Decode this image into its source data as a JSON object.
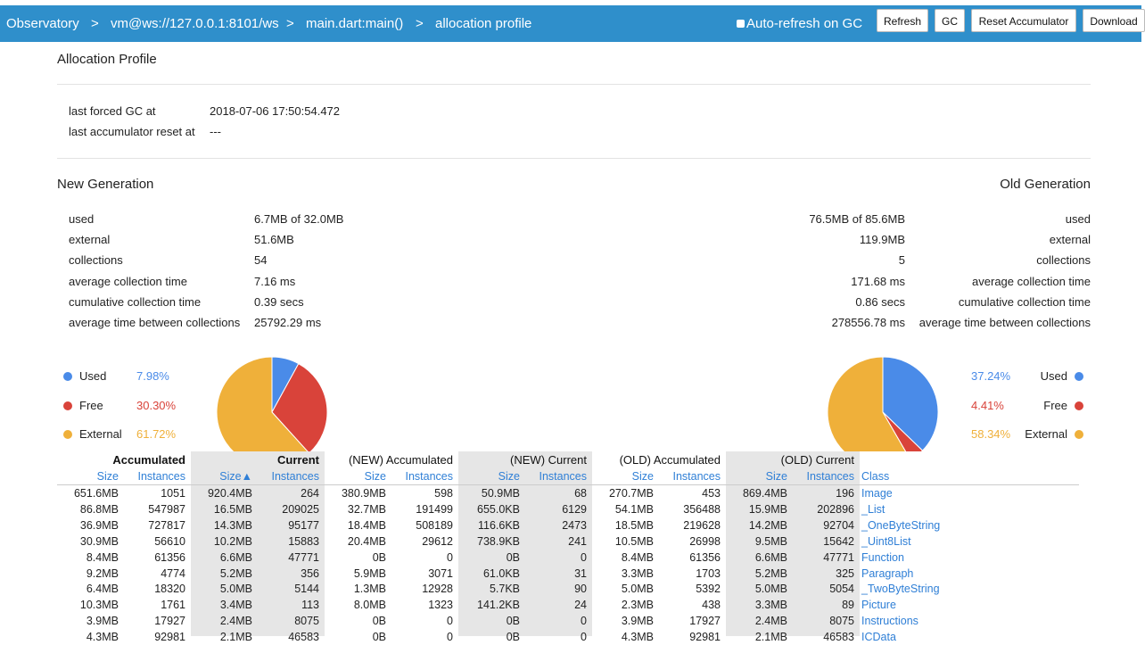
{
  "nav": {
    "crumbs": [
      "Observatory",
      "vm@ws://127.0.0.1:8101/ws",
      "main.dart:main()",
      "allocation profile"
    ],
    "separator": ">",
    "auto_refresh": "Auto-refresh on GC",
    "buttons": [
      "Refresh",
      "GC",
      "Reset Accumulator",
      "Download"
    ]
  },
  "header": {
    "title": "Allocation Profile"
  },
  "gc_info": [
    {
      "label": "last forced GC at",
      "value": "2018-07-06 17:50:54.472"
    },
    {
      "label": "last accumulator reset at",
      "value": "---"
    }
  ],
  "new_generation": {
    "title": "New Generation",
    "rows": [
      {
        "label": "used",
        "value": "6.7MB of 32.0MB"
      },
      {
        "label": "external",
        "value": "51.6MB"
      },
      {
        "label": "collections",
        "value": "54"
      },
      {
        "label": "average collection time",
        "value": "7.16 ms"
      },
      {
        "label": "cumulative collection time",
        "value": "0.39 secs"
      },
      {
        "label": "average time between collections",
        "value": "25792.29 ms"
      }
    ],
    "chart": {
      "type": "pie",
      "categories": [
        "Used",
        "Free",
        "External"
      ],
      "values": [
        7.98,
        30.3,
        61.72
      ],
      "value_labels": [
        "7.98%",
        "30.30%",
        "61.72%"
      ],
      "colors": [
        "#4a8be8",
        "#d9433a",
        "#efb03a"
      ]
    }
  },
  "old_generation": {
    "title": "Old Generation",
    "rows": [
      {
        "label": "used",
        "value": "76.5MB of 85.6MB"
      },
      {
        "label": "external",
        "value": "119.9MB"
      },
      {
        "label": "collections",
        "value": "5"
      },
      {
        "label": "average collection time",
        "value": "171.68 ms"
      },
      {
        "label": "cumulative collection time",
        "value": "0.86 secs"
      },
      {
        "label": "average time between collections",
        "value": "278556.78 ms"
      }
    ],
    "chart": {
      "type": "pie",
      "categories": [
        "Used",
        "Free",
        "External"
      ],
      "values": [
        37.24,
        4.41,
        58.34
      ],
      "value_labels": [
        "37.24%",
        "4.41%",
        "58.34%"
      ],
      "colors": [
        "#4a8be8",
        "#d9433a",
        "#efb03a"
      ]
    }
  },
  "table": {
    "groups": [
      "Accumulated",
      "Current",
      "(NEW) Accumulated",
      "(NEW) Current",
      "(OLD) Accumulated",
      "(OLD) Current"
    ],
    "subheaders": [
      "Size",
      "Instances",
      "Size▲",
      "Instances",
      "Size",
      "Instances",
      "Size",
      "Instances",
      "Size",
      "Instances",
      "Size",
      "Instances",
      "Class"
    ],
    "rows": [
      [
        "651.6MB",
        "1051",
        "920.4MB",
        "264",
        "380.9MB",
        "598",
        "50.9MB",
        "68",
        "270.7MB",
        "453",
        "869.4MB",
        "196",
        "Image"
      ],
      [
        "86.8MB",
        "547987",
        "16.5MB",
        "209025",
        "32.7MB",
        "191499",
        "655.0KB",
        "6129",
        "54.1MB",
        "356488",
        "15.9MB",
        "202896",
        "_List"
      ],
      [
        "36.9MB",
        "727817",
        "14.3MB",
        "95177",
        "18.4MB",
        "508189",
        "116.6KB",
        "2473",
        "18.5MB",
        "219628",
        "14.2MB",
        "92704",
        "_OneByteString"
      ],
      [
        "30.9MB",
        "56610",
        "10.2MB",
        "15883",
        "20.4MB",
        "29612",
        "738.9KB",
        "241",
        "10.5MB",
        "26998",
        "9.5MB",
        "15642",
        "_Uint8List"
      ],
      [
        "8.4MB",
        "61356",
        "6.6MB",
        "47771",
        "0B",
        "0",
        "0B",
        "0",
        "8.4MB",
        "61356",
        "6.6MB",
        "47771",
        "Function"
      ],
      [
        "9.2MB",
        "4774",
        "5.2MB",
        "356",
        "5.9MB",
        "3071",
        "61.0KB",
        "31",
        "3.3MB",
        "1703",
        "5.2MB",
        "325",
        "Paragraph"
      ],
      [
        "6.4MB",
        "18320",
        "5.0MB",
        "5144",
        "1.3MB",
        "12928",
        "5.7KB",
        "90",
        "5.0MB",
        "5392",
        "5.0MB",
        "5054",
        "_TwoByteString"
      ],
      [
        "10.3MB",
        "1761",
        "3.4MB",
        "113",
        "8.0MB",
        "1323",
        "141.2KB",
        "24",
        "2.3MB",
        "438",
        "3.3MB",
        "89",
        "Picture"
      ],
      [
        "3.9MB",
        "17927",
        "2.4MB",
        "8075",
        "0B",
        "0",
        "0B",
        "0",
        "3.9MB",
        "17927",
        "2.4MB",
        "8075",
        "Instructions"
      ],
      [
        "4.3MB",
        "92981",
        "2.1MB",
        "46583",
        "0B",
        "0",
        "0B",
        "0",
        "4.3MB",
        "92981",
        "2.1MB",
        "46583",
        "ICData"
      ]
    ]
  }
}
